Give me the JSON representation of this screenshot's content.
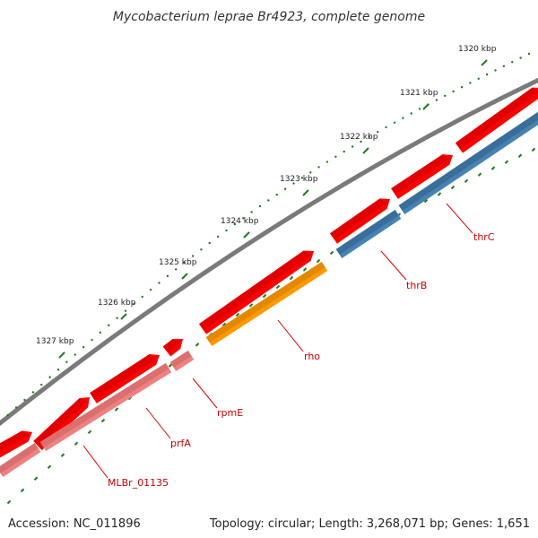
{
  "title": "Mycobacterium leprae Br4923, complete genome",
  "accession": "Accession: NC_011896",
  "summary": "Topology: circular; Length: 3,268,071 bp; Genes: 1,651",
  "colors": {
    "backbone": "#7a7a7a",
    "tick": "#1e7a1e",
    "cds_forward": "#ff0000",
    "cds_forward_shade": "#c80000",
    "label_line": "#e00000",
    "label_text": "#cc0000",
    "pseudo": "#f08080",
    "blue": "#4682b4",
    "orange": "#ff9900"
  },
  "ticks": [
    {
      "label": "1320 kbp"
    },
    {
      "label": "1321 kbp"
    },
    {
      "label": "1322 kbp"
    },
    {
      "label": "1323 kbp"
    },
    {
      "label": "1324 kbp"
    },
    {
      "label": "1325 kbp"
    },
    {
      "label": "1326 kbp"
    },
    {
      "label": "1327 kbp"
    }
  ],
  "genes": [
    {
      "label": "thrC",
      "track": "blue"
    },
    {
      "label": "thrB",
      "track": "blue"
    },
    {
      "label": "rho",
      "track": "orange"
    },
    {
      "label": "rpmE",
      "track": "pseudo"
    },
    {
      "label": "prfA",
      "track": "pseudo"
    },
    {
      "label": "MLBr_01135",
      "track": "pseudo"
    }
  ]
}
